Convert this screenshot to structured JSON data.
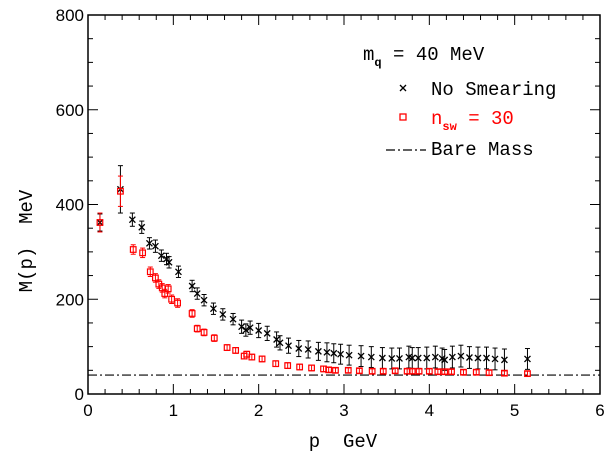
{
  "chart_data": {
    "type": "scatter",
    "xlabel": "p  GeV",
    "ylabel": "M(p)  MeV",
    "xlim": [
      0,
      6
    ],
    "ylim": [
      0,
      800
    ],
    "xticks": [
      "0",
      "1",
      "2",
      "3",
      "4",
      "5",
      "6"
    ],
    "yticks": [
      "0",
      "200",
      "400",
      "600",
      "800"
    ],
    "grid": false,
    "legend_position": "top-right",
    "legend": {
      "title": {
        "main": "m",
        "sub": "q",
        "rest": " = 40 MeV"
      },
      "no_smearing": "No Smearing",
      "smeared": {
        "main": "n",
        "sub": "sw",
        "rest": " = 30"
      },
      "bare_mass": "Bare Mass"
    },
    "bare_mass": 40,
    "colors": {
      "no_smearing": "#000000",
      "smeared": "#ff0000",
      "bare_mass": "#000000"
    },
    "series": [
      {
        "name": "No Smearing",
        "marker": "x",
        "points": [
          [
            0.14,
            362,
            18
          ],
          [
            0.38,
            432,
            50
          ],
          [
            0.52,
            368,
            14
          ],
          [
            0.63,
            352,
            13
          ],
          [
            0.72,
            318,
            12
          ],
          [
            0.79,
            312,
            13
          ],
          [
            0.86,
            292,
            12
          ],
          [
            0.92,
            285,
            12
          ],
          [
            0.95,
            278,
            12
          ],
          [
            1.06,
            258,
            12
          ],
          [
            1.22,
            228,
            12
          ],
          [
            1.28,
            212,
            12
          ],
          [
            1.36,
            198,
            12
          ],
          [
            1.47,
            180,
            12
          ],
          [
            1.58,
            168,
            12
          ],
          [
            1.7,
            158,
            12
          ],
          [
            1.8,
            142,
            14
          ],
          [
            1.85,
            135,
            13
          ],
          [
            1.9,
            140,
            14
          ],
          [
            2.0,
            134,
            15
          ],
          [
            2.1,
            128,
            15
          ],
          [
            2.21,
            115,
            16
          ],
          [
            2.25,
            108,
            15
          ],
          [
            2.35,
            102,
            16
          ],
          [
            2.47,
            96,
            17
          ],
          [
            2.58,
            94,
            18
          ],
          [
            2.7,
            90,
            19
          ],
          [
            2.8,
            88,
            20
          ],
          [
            2.88,
            86,
            20
          ],
          [
            2.96,
            84,
            21
          ],
          [
            3.06,
            82,
            21
          ],
          [
            3.2,
            80,
            22
          ],
          [
            3.32,
            78,
            22
          ],
          [
            3.45,
            76,
            22
          ],
          [
            3.56,
            75,
            22
          ],
          [
            3.65,
            75,
            22
          ],
          [
            3.76,
            78,
            23
          ],
          [
            3.8,
            76,
            22
          ],
          [
            3.87,
            76,
            22
          ],
          [
            3.97,
            76,
            23
          ],
          [
            4.07,
            78,
            23
          ],
          [
            4.15,
            75,
            22
          ],
          [
            4.18,
            72,
            22
          ],
          [
            4.27,
            78,
            23
          ],
          [
            4.37,
            80,
            23
          ],
          [
            4.47,
            77,
            23
          ],
          [
            4.57,
            76,
            23
          ],
          [
            4.67,
            76,
            23
          ],
          [
            4.77,
            74,
            23
          ],
          [
            4.88,
            72,
            23
          ],
          [
            5.15,
            74,
            22
          ]
        ]
      },
      {
        "name": "n_sw = 30",
        "marker": "square",
        "points": [
          [
            0.14,
            362,
            20
          ],
          [
            0.38,
            428,
            32
          ],
          [
            0.53,
            305,
            10
          ],
          [
            0.64,
            298,
            10
          ],
          [
            0.73,
            258,
            10
          ],
          [
            0.79,
            245,
            9
          ],
          [
            0.83,
            232,
            9
          ],
          [
            0.87,
            224,
            9
          ],
          [
            0.9,
            212,
            9
          ],
          [
            0.94,
            222,
            9
          ],
          [
            0.98,
            200,
            9
          ],
          [
            1.05,
            192,
            9
          ],
          [
            1.22,
            170,
            8
          ],
          [
            1.28,
            138,
            7
          ],
          [
            1.36,
            130,
            7
          ],
          [
            1.48,
            118,
            7
          ],
          [
            1.63,
            98,
            6
          ],
          [
            1.73,
            92,
            6
          ],
          [
            1.83,
            80,
            6
          ],
          [
            1.86,
            84,
            6
          ],
          [
            1.92,
            78,
            6
          ],
          [
            2.04,
            74,
            6
          ],
          [
            2.2,
            64,
            6
          ],
          [
            2.34,
            60,
            6
          ],
          [
            2.48,
            57,
            6
          ],
          [
            2.62,
            55,
            6
          ],
          [
            2.76,
            53,
            6
          ],
          [
            2.82,
            51,
            5
          ],
          [
            2.9,
            50,
            5
          ],
          [
            3.05,
            50,
            5
          ],
          [
            3.18,
            49,
            5
          ],
          [
            3.33,
            48,
            5
          ],
          [
            3.46,
            48,
            5
          ],
          [
            3.6,
            49,
            5
          ],
          [
            3.74,
            48,
            5
          ],
          [
            3.8,
            48,
            5
          ],
          [
            3.88,
            48,
            5
          ],
          [
            4.0,
            48,
            5
          ],
          [
            4.1,
            47,
            5
          ],
          [
            4.18,
            47,
            5
          ],
          [
            4.26,
            47,
            5
          ],
          [
            4.4,
            46,
            5
          ],
          [
            4.55,
            46,
            5
          ],
          [
            4.7,
            45,
            5
          ],
          [
            4.88,
            44,
            5
          ],
          [
            5.15,
            43,
            5
          ]
        ]
      }
    ]
  }
}
